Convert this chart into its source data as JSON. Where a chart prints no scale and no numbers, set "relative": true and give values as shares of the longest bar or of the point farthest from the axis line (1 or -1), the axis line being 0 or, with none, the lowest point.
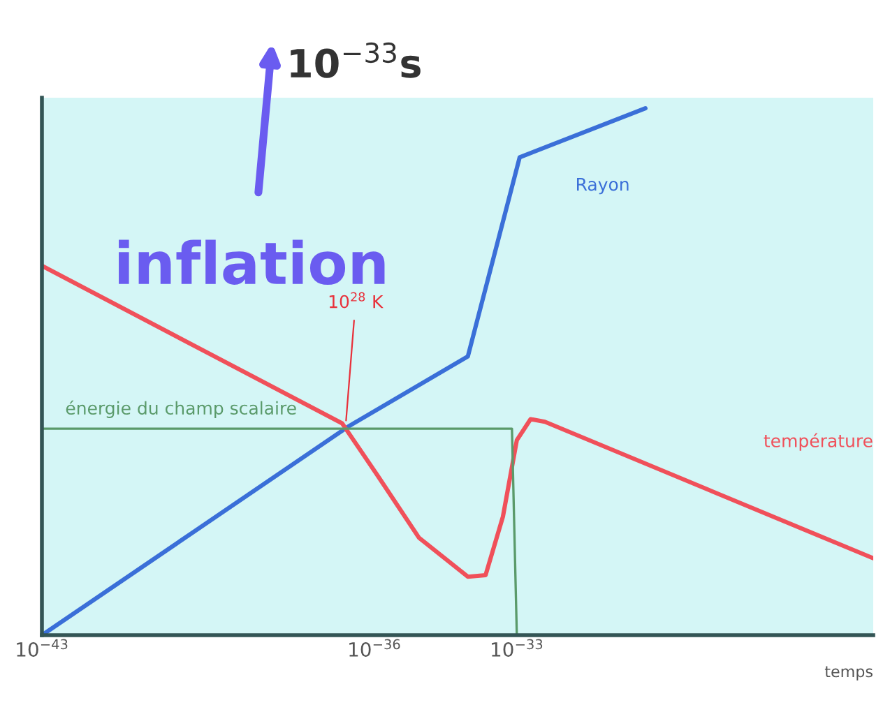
{
  "chart_data": {
    "type": "line",
    "relative": true,
    "xlabel": "temps",
    "log": "x",
    "xlim": [
      1e-43,
      3.2e-26
    ],
    "xticks": [
      {
        "value": 1e-43,
        "label": "10$^{−43}$"
      },
      {
        "value": 1e-36,
        "label": "10$^{−36}$"
      },
      {
        "value": 1e-33,
        "label": "10$^{−33}$"
      }
    ],
    "series": [
      {
        "name": "Rayon",
        "color": "#3a6fd8",
        "x": [
          1e-43,
          2.95e-37,
          9.3e-35,
          1.15e-33,
          5.1e-31
        ],
        "values": [
          0,
          0.397,
          0.529,
          0.907,
          1.0
        ]
      },
      {
        "name": "température",
        "color": "#f0505a",
        "x": [
          1e-43,
          2.1e-37,
          1.15e-36,
          8.7e-36,
          9.3e-35,
          2.2e-34,
          5.1e-34,
          1e-33,
          1.95e-33,
          3.9e-33,
          3.2e-26
        ],
        "values": [
          0.701,
          0.402,
          0.304,
          0.185,
          0.111,
          0.114,
          0.225,
          0.37,
          0.41,
          0.405,
          0.146
        ]
      },
      {
        "name": "énergie du champ scalaire",
        "color": "#5a9a6a",
        "x": [
          1e-43,
          7.9e-34,
          1e-33
        ],
        "values": [
          0.392,
          0.392,
          0.0
        ]
      }
    ],
    "annotations": [
      "inflation",
      "10$^{−33}$s",
      {
        "text": "10$^{28}$ K",
        "x": 2.5e-37,
        "y": 0.4
      }
    ],
    "grid": false,
    "legend": false,
    "marker": "none",
    "line_style": "solid"
  }
}
